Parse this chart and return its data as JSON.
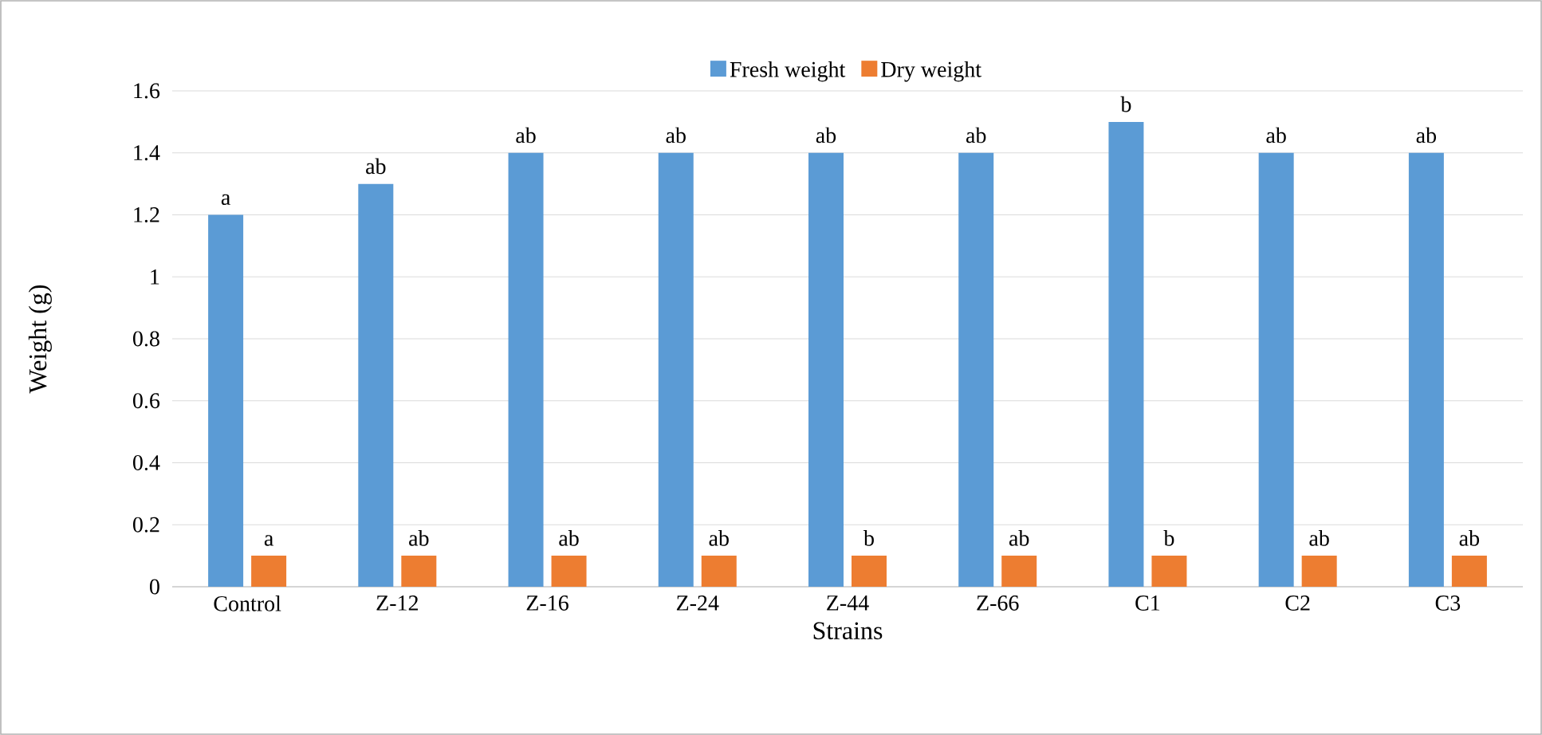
{
  "chart_data": {
    "type": "bar",
    "xlabel": "Strains",
    "ylabel": "Weight (g)",
    "categories": [
      "Control",
      "Z-12",
      "Z-16",
      "Z-24",
      "Z-44",
      "Z-66",
      "C1",
      "C2",
      "C3"
    ],
    "series": [
      {
        "name": "Fresh weight",
        "color": "#5b9bd5",
        "values": [
          1.2,
          1.3,
          1.4,
          1.4,
          1.4,
          1.4,
          1.5,
          1.4,
          1.4
        ],
        "value_labels": [
          "a",
          "ab",
          "ab",
          "ab",
          "ab",
          "ab",
          "b",
          "ab",
          "ab"
        ]
      },
      {
        "name": "Dry weight",
        "color": "#ed7d31",
        "values": [
          0.1,
          0.1,
          0.1,
          0.1,
          0.1,
          0.1,
          0.1,
          0.1,
          0.1
        ],
        "value_labels": [
          "a",
          "ab",
          "ab",
          "ab",
          "b",
          "ab",
          "b",
          "ab",
          "ab"
        ]
      }
    ],
    "ylim": [
      0,
      1.6
    ],
    "yticks": [
      0,
      0.2,
      0.4,
      0.6,
      0.8,
      1,
      1.2,
      1.4,
      1.6
    ],
    "grid": "y",
    "legend": "top"
  }
}
